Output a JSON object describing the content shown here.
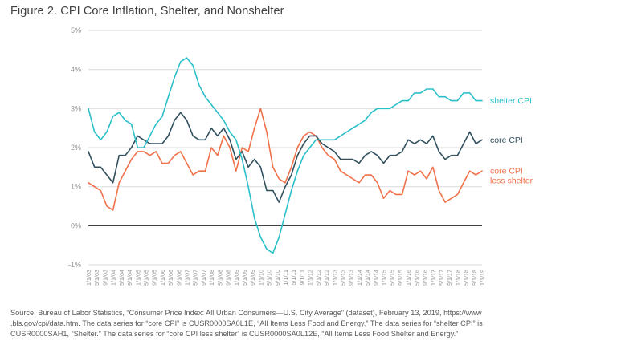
{
  "figure": {
    "title": "Figure 2. CPI Core Inflation, Shelter, and Nonshelter"
  },
  "source": {
    "lines": [
      "Source: Bureau of Labor Statistics, “Consumer Price Index: All Urban Consumers—U.S. City Average” (dataset), February 13, 2019, https://www",
      ".bls.gov/cpi/data.htm. The data series for “core CPI” is CUSR0000SA0L1E, “All Items Less Food and Energy.” The data series for “shelter CPI” is",
      "CUSR0000SAH1, “Shelter.” The data series for “core CPI less shelter” is CUSR0000SA0L12E, “All Items Less Food Shelter and Energy.”"
    ]
  },
  "chart_data": {
    "type": "line",
    "title": "Figure 2. CPI Core Inflation, Shelter, and Nonshelter",
    "x_start": "1/1/03",
    "x_end": "1/1/19",
    "data_step_months": 3,
    "tick_step_months": 4,
    "ylim": [
      -1,
      5
    ],
    "grid": "horizontal",
    "zero_line": true,
    "legend_position": "right-of-line-ends",
    "y_tick_labels": [
      "5%",
      "4%",
      "3%",
      "2%",
      "1%",
      "0%",
      "-1%"
    ],
    "x_tick_labels": [
      "1/1/03",
      "5/1/03",
      "9/1/03",
      "1/1/04",
      "5/1/04",
      "9/1/04",
      "1/1/05",
      "5/1/05",
      "9/1/05",
      "1/1/06",
      "5/1/06",
      "9/1/06",
      "1/1/07",
      "5/1/07",
      "9/1/07",
      "1/1/08",
      "5/1/08",
      "9/1/08",
      "1/1/09",
      "5/1/09",
      "9/1/09",
      "1/1/10",
      "5/1/10",
      "9/1/10",
      "1/1/11",
      "5/1/11",
      "9/1/11",
      "1/1/12",
      "5/1/12",
      "9/1/12",
      "1/1/13",
      "5/1/13",
      "9/1/13",
      "1/1/14",
      "5/1/14",
      "9/1/14",
      "1/1/15",
      "5/1/15",
      "9/1/15",
      "1/1/16",
      "5/1/16",
      "9/1/16",
      "1/1/17",
      "5/1/17",
      "9/1/17",
      "1/1/18",
      "5/1/18",
      "9/1/18",
      "1/1/19"
    ],
    "series": [
      {
        "name": "shelter CPI",
        "color": "#2bbfc9",
        "label_lines": [
          "shelter CPI"
        ],
        "values": [
          3.0,
          2.4,
          2.2,
          2.4,
          2.8,
          2.9,
          2.7,
          2.6,
          2.0,
          2.0,
          2.3,
          2.6,
          2.8,
          3.3,
          3.8,
          4.2,
          4.3,
          4.1,
          3.6,
          3.3,
          3.1,
          2.9,
          2.7,
          2.4,
          2.2,
          1.7,
          1.0,
          0.2,
          -0.3,
          -0.6,
          -0.7,
          -0.3,
          0.3,
          0.9,
          1.4,
          1.8,
          2.0,
          2.2,
          2.2,
          2.2,
          2.2,
          2.3,
          2.4,
          2.5,
          2.6,
          2.7,
          2.9,
          3.0,
          3.0,
          3.0,
          3.1,
          3.2,
          3.2,
          3.4,
          3.4,
          3.5,
          3.5,
          3.3,
          3.3,
          3.2,
          3.2,
          3.4,
          3.4,
          3.2,
          3.2
        ]
      },
      {
        "name": "core CPI",
        "color": "#32505e",
        "label_lines": [
          "core CPI"
        ],
        "values": [
          1.9,
          1.5,
          1.5,
          1.3,
          1.1,
          1.8,
          1.8,
          2.0,
          2.3,
          2.2,
          2.1,
          2.1,
          2.1,
          2.3,
          2.7,
          2.9,
          2.7,
          2.3,
          2.2,
          2.2,
          2.5,
          2.3,
          2.5,
          2.2,
          1.7,
          1.9,
          1.5,
          1.7,
          1.5,
          0.9,
          0.9,
          0.6,
          1.0,
          1.3,
          1.8,
          2.1,
          2.3,
          2.3,
          2.1,
          2.0,
          1.9,
          1.7,
          1.7,
          1.7,
          1.6,
          1.8,
          1.9,
          1.8,
          1.6,
          1.8,
          1.8,
          1.9,
          2.2,
          2.1,
          2.2,
          2.1,
          2.3,
          1.9,
          1.7,
          1.8,
          1.8,
          2.1,
          2.4,
          2.1,
          2.2
        ]
      },
      {
        "name": "core CPI less shelter",
        "color": "#f0714a",
        "label_lines": [
          "core CPI",
          "less shelter"
        ],
        "values": [
          1.1,
          1.0,
          0.9,
          0.5,
          0.4,
          1.1,
          1.4,
          1.7,
          1.9,
          1.9,
          1.8,
          1.9,
          1.6,
          1.6,
          1.8,
          1.9,
          1.6,
          1.3,
          1.4,
          1.4,
          2.0,
          1.8,
          2.3,
          2.0,
          1.4,
          2.0,
          1.9,
          2.5,
          3.0,
          2.4,
          1.5,
          1.2,
          1.1,
          1.5,
          2.0,
          2.3,
          2.4,
          2.3,
          2.0,
          1.8,
          1.7,
          1.4,
          1.3,
          1.2,
          1.1,
          1.3,
          1.3,
          1.1,
          0.7,
          0.9,
          0.8,
          0.8,
          1.4,
          1.3,
          1.4,
          1.2,
          1.5,
          0.9,
          0.6,
          0.7,
          0.8,
          1.1,
          1.4,
          1.3,
          1.4
        ]
      }
    ]
  }
}
